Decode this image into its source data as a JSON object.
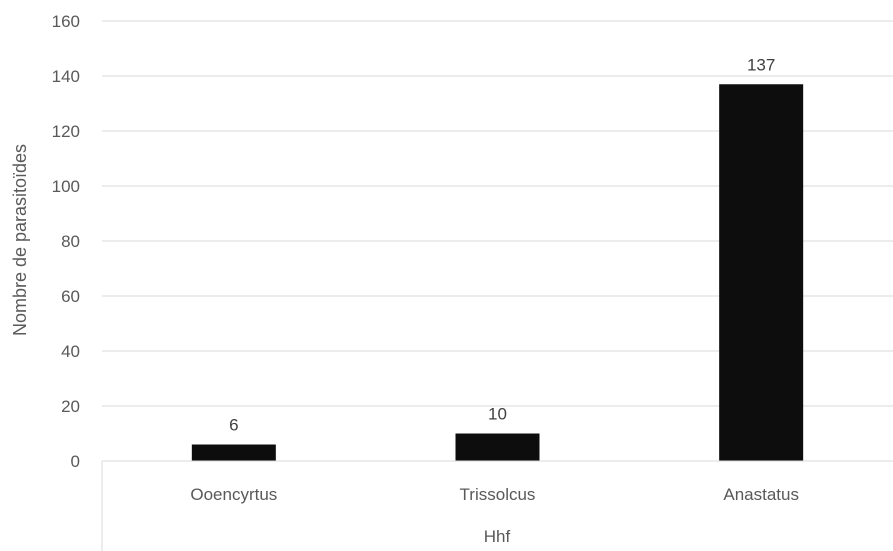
{
  "chart_data": {
    "type": "bar",
    "categories": [
      "Ooencyrtus",
      "Trissolcus",
      "Anastatus"
    ],
    "group_label": "Hhf",
    "series": [
      {
        "values": [
          6,
          10,
          137
        ],
        "color": "#0d0d0d"
      }
    ],
    "data_labels": [
      "6",
      "10",
      "137"
    ],
    "ylabel": "Nombre de parasitoïdes",
    "xlabel": "",
    "ylim": [
      0,
      160
    ],
    "yticks": [
      0,
      20,
      40,
      60,
      80,
      100,
      120,
      140,
      160
    ],
    "grid": true,
    "legend": "none"
  }
}
